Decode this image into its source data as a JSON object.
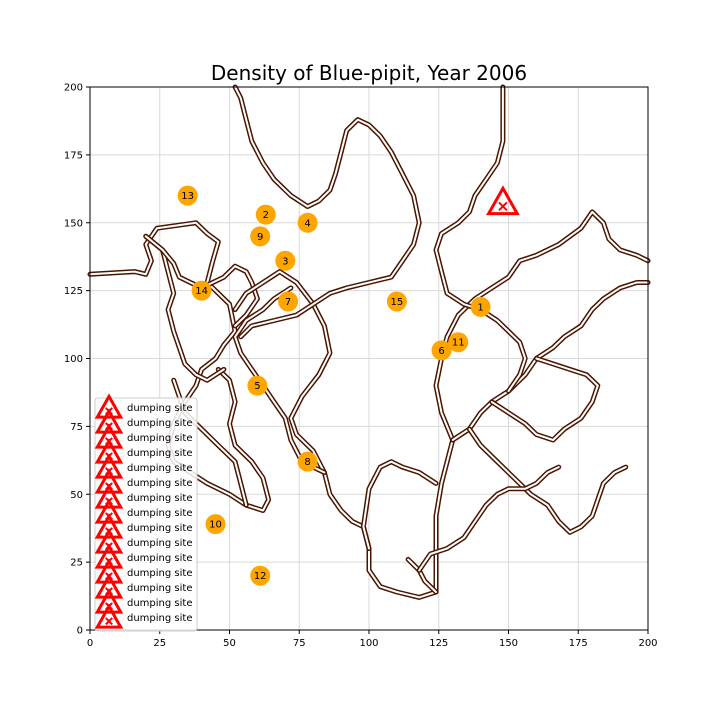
{
  "chart_data": {
    "type": "scatter",
    "title": "Density of Blue-pipit, Year 2006",
    "xlabel": "",
    "ylabel": "",
    "xlim": [
      0,
      200
    ],
    "ylim": [
      0,
      200
    ],
    "x_ticks": [
      0,
      25,
      50,
      75,
      100,
      125,
      150,
      175,
      200
    ],
    "y_ticks": [
      0,
      25,
      50,
      75,
      100,
      125,
      150,
      175,
      200
    ],
    "grid": true,
    "legend_position": "lower-left",
    "colors": {
      "site_marker": "#FFA500",
      "dumping_marker": "#FF0000",
      "road_outer": "#4a1500",
      "grid": "#d9d9d9"
    },
    "observation_sites": [
      {
        "label": "1",
        "x": 140,
        "y": 119
      },
      {
        "label": "2",
        "x": 63,
        "y": 153
      },
      {
        "label": "3",
        "x": 70,
        "y": 136
      },
      {
        "label": "4",
        "x": 78,
        "y": 150
      },
      {
        "label": "5",
        "x": 60,
        "y": 90
      },
      {
        "label": "6",
        "x": 126,
        "y": 103
      },
      {
        "label": "7",
        "x": 71,
        "y": 121
      },
      {
        "label": "8",
        "x": 78,
        "y": 62
      },
      {
        "label": "9",
        "x": 61,
        "y": 145
      },
      {
        "label": "10",
        "x": 45,
        "y": 39
      },
      {
        "label": "11",
        "x": 132,
        "y": 106
      },
      {
        "label": "12",
        "x": 61,
        "y": 20
      },
      {
        "label": "13",
        "x": 35,
        "y": 160
      },
      {
        "label": "14",
        "x": 40,
        "y": 125
      },
      {
        "label": "15",
        "x": 110,
        "y": 121
      }
    ],
    "dumping_sites": [
      {
        "name": "dumping site",
        "x": 148,
        "y": 157
      }
    ],
    "legend_entries": [
      "dumping site",
      "dumping site",
      "dumping site",
      "dumping site",
      "dumping site",
      "dumping site",
      "dumping site",
      "dumping site",
      "dumping site",
      "dumping site",
      "dumping site",
      "dumping site",
      "dumping site",
      "dumping site",
      "dumping site"
    ],
    "roads": [
      [
        [
          0,
          131
        ],
        [
          16,
          132
        ],
        [
          20,
          131
        ],
        [
          22,
          136
        ],
        [
          20,
          142
        ],
        [
          24,
          148
        ],
        [
          38,
          150
        ],
        [
          42,
          146
        ],
        [
          46,
          143
        ],
        [
          44,
          136
        ],
        [
          42,
          128
        ],
        [
          46,
          124
        ],
        [
          50,
          120
        ],
        [
          52,
          110
        ],
        [
          48,
          105
        ],
        [
          45,
          100
        ],
        [
          40,
          96
        ],
        [
          38,
          90
        ],
        [
          34,
          84
        ],
        [
          30,
          76
        ],
        [
          28,
          68
        ],
        [
          30,
          62
        ],
        [
          36,
          58
        ],
        [
          42,
          54
        ],
        [
          50,
          50
        ],
        [
          56,
          46
        ],
        [
          62,
          44
        ],
        [
          64,
          48
        ],
        [
          62,
          56
        ],
        [
          58,
          62
        ],
        [
          52,
          68
        ],
        [
          50,
          76
        ],
        [
          52,
          84
        ],
        [
          50,
          92
        ],
        [
          46,
          96
        ]
      ],
      [
        [
          20,
          145
        ],
        [
          26,
          140
        ],
        [
          28,
          132
        ],
        [
          30,
          124
        ],
        [
          28,
          118
        ],
        [
          30,
          110
        ],
        [
          32,
          104
        ],
        [
          34,
          98
        ],
        [
          38,
          94
        ],
        [
          42,
          92
        ],
        [
          48,
          96
        ]
      ],
      [
        [
          20,
          145
        ],
        [
          26,
          140
        ],
        [
          30,
          135
        ],
        [
          32,
          130
        ],
        [
          36,
          128
        ],
        [
          40,
          126
        ],
        [
          44,
          128
        ],
        [
          48,
          130
        ],
        [
          52,
          134
        ],
        [
          56,
          132
        ],
        [
          58,
          128
        ],
        [
          60,
          122
        ],
        [
          56,
          116
        ],
        [
          52,
          112
        ]
      ],
      [
        [
          52,
          118
        ],
        [
          56,
          124
        ],
        [
          62,
          128
        ],
        [
          68,
          132
        ],
        [
          74,
          128
        ],
        [
          80,
          120
        ],
        [
          84,
          112
        ],
        [
          86,
          102
        ],
        [
          82,
          94
        ],
        [
          76,
          86
        ],
        [
          72,
          78
        ],
        [
          74,
          72
        ],
        [
          80,
          66
        ],
        [
          84,
          58
        ],
        [
          86,
          50
        ],
        [
          90,
          44
        ],
        [
          94,
          40
        ],
        [
          98,
          38
        ],
        [
          100,
          30
        ],
        [
          100,
          22
        ],
        [
          104,
          16
        ],
        [
          110,
          14
        ],
        [
          118,
          12
        ],
        [
          124,
          14
        ],
        [
          124,
          26
        ],
        [
          124,
          42
        ],
        [
          126,
          54
        ],
        [
          128,
          62
        ],
        [
          130,
          70
        ],
        [
          126,
          80
        ],
        [
          124,
          90
        ],
        [
          126,
          100
        ],
        [
          128,
          108
        ],
        [
          132,
          116
        ],
        [
          138,
          122
        ],
        [
          144,
          126
        ],
        [
          150,
          130
        ],
        [
          154,
          136
        ],
        [
          160,
          138
        ],
        [
          168,
          142
        ],
        [
          176,
          148
        ],
        [
          180,
          154
        ],
        [
          184,
          150
        ],
        [
          186,
          144
        ],
        [
          190,
          140
        ],
        [
          196,
          138
        ],
        [
          200,
          136
        ]
      ],
      [
        [
          100,
          30
        ],
        [
          98,
          38
        ],
        [
          100,
          52
        ],
        [
          104,
          60
        ],
        [
          108,
          62
        ],
        [
          112,
          60
        ],
        [
          118,
          58
        ],
        [
          124,
          54
        ]
      ],
      [
        [
          84,
          58
        ],
        [
          80,
          60
        ],
        [
          76,
          62
        ],
        [
          72,
          70
        ],
        [
          70,
          78
        ],
        [
          66,
          84
        ],
        [
          62,
          90
        ],
        [
          58,
          96
        ],
        [
          54,
          102
        ],
        [
          52,
          108
        ],
        [
          56,
          114
        ],
        [
          62,
          118
        ],
        [
          66,
          122
        ],
        [
          72,
          126
        ]
      ],
      [
        [
          56,
          46
        ],
        [
          54,
          54
        ],
        [
          52,
          62
        ],
        [
          46,
          68
        ],
        [
          40,
          74
        ],
        [
          34,
          80
        ],
        [
          32,
          86
        ],
        [
          30,
          92
        ]
      ],
      [
        [
          54,
          108
        ],
        [
          58,
          112
        ],
        [
          66,
          114
        ],
        [
          74,
          116
        ],
        [
          80,
          120
        ],
        [
          86,
          124
        ],
        [
          92,
          126
        ],
        [
          100,
          128
        ],
        [
          108,
          130
        ],
        [
          112,
          136
        ],
        [
          116,
          142
        ],
        [
          118,
          150
        ],
        [
          116,
          160
        ],
        [
          112,
          168
        ],
        [
          108,
          176
        ],
        [
          104,
          182
        ],
        [
          100,
          186
        ],
        [
          96,
          188
        ],
        [
          92,
          184
        ],
        [
          90,
          176
        ],
        [
          88,
          168
        ],
        [
          86,
          162
        ],
        [
          82,
          158
        ],
        [
          78,
          156
        ],
        [
          72,
          160
        ],
        [
          66,
          166
        ],
        [
          62,
          172
        ],
        [
          58,
          180
        ],
        [
          56,
          188
        ],
        [
          54,
          196
        ],
        [
          52,
          200
        ]
      ],
      [
        [
          130,
          70
        ],
        [
          136,
          74
        ],
        [
          140,
          80
        ],
        [
          144,
          84
        ],
        [
          150,
          88
        ],
        [
          156,
          94
        ],
        [
          160,
          100
        ],
        [
          166,
          104
        ],
        [
          170,
          108
        ],
        [
          176,
          112
        ],
        [
          180,
          118
        ],
        [
          184,
          122
        ],
        [
          190,
          126
        ],
        [
          196,
          128
        ],
        [
          200,
          128
        ]
      ],
      [
        [
          144,
          84
        ],
        [
          150,
          80
        ],
        [
          156,
          76
        ],
        [
          160,
          72
        ],
        [
          166,
          70
        ],
        [
          170,
          74
        ],
        [
          176,
          78
        ],
        [
          180,
          84
        ],
        [
          182,
          90
        ],
        [
          178,
          94
        ],
        [
          172,
          96
        ],
        [
          166,
          98
        ],
        [
          160,
          100
        ]
      ],
      [
        [
          136,
          74
        ],
        [
          140,
          68
        ],
        [
          146,
          62
        ],
        [
          152,
          56
        ],
        [
          158,
          50
        ],
        [
          164,
          46
        ],
        [
          168,
          40
        ],
        [
          172,
          36
        ],
        [
          176,
          38
        ],
        [
          180,
          42
        ],
        [
          182,
          48
        ],
        [
          184,
          54
        ],
        [
          188,
          58
        ],
        [
          192,
          60
        ]
      ],
      [
        [
          150,
          88
        ],
        [
          154,
          94
        ],
        [
          156,
          100
        ],
        [
          154,
          106
        ],
        [
          150,
          110
        ],
        [
          146,
          114
        ],
        [
          140,
          118
        ],
        [
          134,
          120
        ],
        [
          128,
          124
        ],
        [
          126,
          132
        ],
        [
          124,
          140
        ],
        [
          126,
          146
        ],
        [
          132,
          150
        ],
        [
          136,
          154
        ],
        [
          138,
          160
        ],
        [
          142,
          166
        ],
        [
          146,
          172
        ],
        [
          148,
          180
        ],
        [
          148,
          188
        ],
        [
          148,
          196
        ],
        [
          148,
          200
        ]
      ],
      [
        [
          124,
          14
        ],
        [
          120,
          18
        ],
        [
          118,
          22
        ],
        [
          114,
          26
        ]
      ],
      [
        [
          118,
          22
        ],
        [
          122,
          28
        ],
        [
          128,
          30
        ],
        [
          134,
          34
        ],
        [
          138,
          40
        ],
        [
          142,
          46
        ],
        [
          146,
          50
        ],
        [
          150,
          52
        ],
        [
          156,
          52
        ],
        [
          160,
          54
        ],
        [
          164,
          58
        ],
        [
          168,
          60
        ]
      ]
    ]
  }
}
